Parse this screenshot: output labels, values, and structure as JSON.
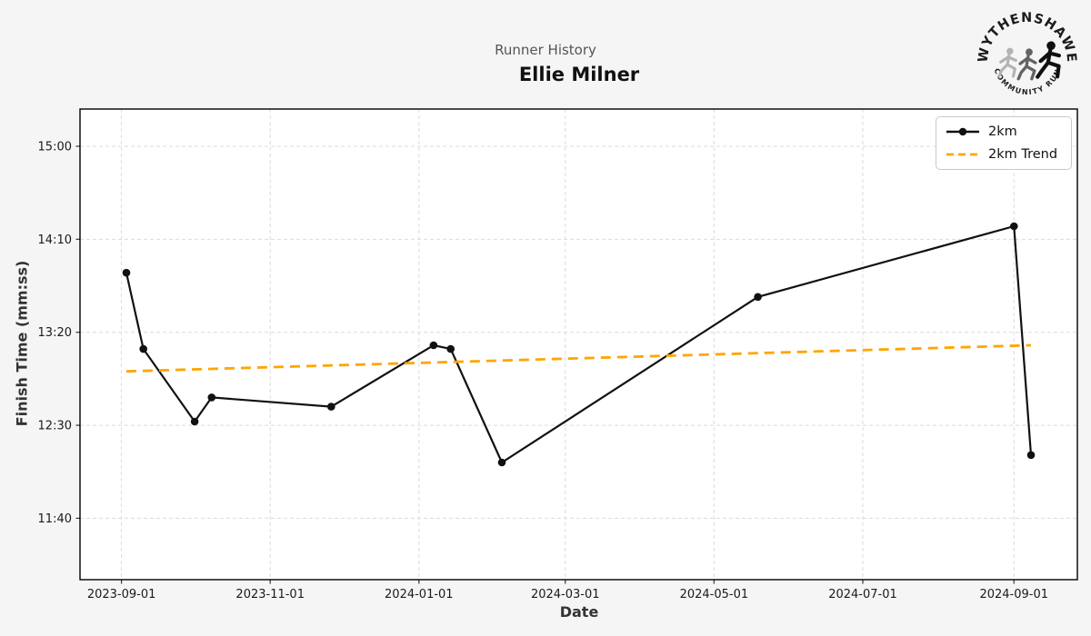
{
  "header": {
    "suptitle": "Runner History",
    "title": "Ellie Milner"
  },
  "logo": {
    "top_text": "WYTHENSHAWE",
    "bottom_text": "COMMUNITY RUN"
  },
  "legend": {
    "items": [
      {
        "label": "2km",
        "color": "#111111",
        "style": "solid-with-marker"
      },
      {
        "label": "2km Trend",
        "color": "#FFA500",
        "style": "dashed"
      }
    ]
  },
  "axes": {
    "xlabel": "Date",
    "ylabel": "Finish Time (mm:ss)"
  },
  "chart_data": {
    "type": "line",
    "title": "Runner History",
    "subtitle": "Ellie Milner",
    "xlabel": "Date",
    "ylabel": "Finish Time (mm:ss)",
    "grid": true,
    "legend_position": "upper right",
    "xlim": [
      "2023-08-15",
      "2024-09-27"
    ],
    "ylim_seconds": [
      667,
      920
    ],
    "x_ticks": [
      "2023-09-01",
      "2023-11-01",
      "2024-01-01",
      "2024-03-01",
      "2024-05-01",
      "2024-07-01",
      "2024-09-01"
    ],
    "y_ticks": [
      {
        "label": "15:00",
        "seconds": 900
      },
      {
        "label": "14:10",
        "seconds": 850
      },
      {
        "label": "13:20",
        "seconds": 800
      },
      {
        "label": "12:30",
        "seconds": 750
      },
      {
        "label": "11:40",
        "seconds": 700
      }
    ],
    "series": [
      {
        "name": "2km",
        "color": "#111111",
        "style": "solid",
        "marker": "circle",
        "points": [
          {
            "date": "2023-09-03",
            "time": "13:52",
            "seconds": 832
          },
          {
            "date": "2023-09-10",
            "time": "13:11",
            "seconds": 791
          },
          {
            "date": "2023-10-01",
            "time": "12:32",
            "seconds": 752
          },
          {
            "date": "2023-10-08",
            "time": "12:45",
            "seconds": 765
          },
          {
            "date": "2023-11-26",
            "time": "12:40",
            "seconds": 760
          },
          {
            "date": "2024-01-07",
            "time": "13:13",
            "seconds": 793
          },
          {
            "date": "2024-01-14",
            "time": "13:11",
            "seconds": 791
          },
          {
            "date": "2024-02-04",
            "time": "12:10",
            "seconds": 730
          },
          {
            "date": "2024-05-19",
            "time": "13:39",
            "seconds": 819
          },
          {
            "date": "2024-09-01",
            "time": "14:17",
            "seconds": 857
          },
          {
            "date": "2024-09-08",
            "time": "12:14",
            "seconds": 734
          }
        ]
      },
      {
        "name": "2km Trend",
        "color": "#FFA500",
        "style": "dashed",
        "marker": "none",
        "points": [
          {
            "date": "2023-09-03",
            "time": "12:59",
            "seconds": 779
          },
          {
            "date": "2024-09-08",
            "time": "13:13",
            "seconds": 793
          }
        ]
      }
    ]
  }
}
